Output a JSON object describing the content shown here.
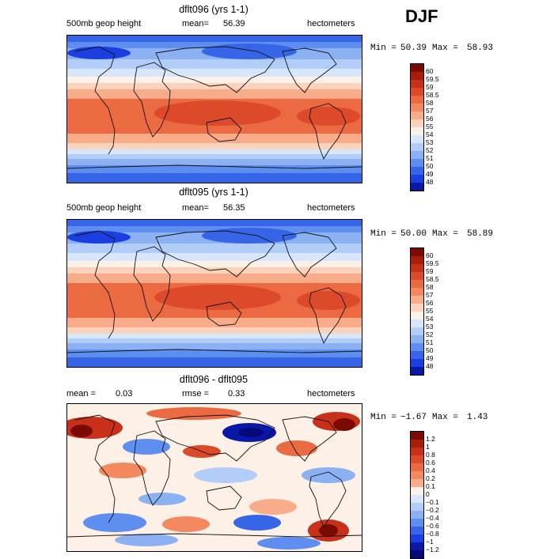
{
  "season": "DJF",
  "panels": [
    {
      "title": "dflt096 (yrs 1-1)",
      "left_label": "500mb geop height",
      "mean_label": "mean=",
      "mean_value": "56.39",
      "units": "hectometers",
      "min_label": "Min =",
      "min_value": "50.39",
      "max_label": "Max =",
      "max_value": "58.93",
      "colorbar_labels": [
        "60",
        "59.5",
        "59",
        "58.5",
        "58",
        "57",
        "56",
        "55",
        "54",
        "53",
        "52",
        "51",
        "50",
        "49",
        "48"
      ],
      "colors": [
        "#7a0a02",
        "#a81c0a",
        "#c8301a",
        "#dc4a2a",
        "#ec6a42",
        "#f4885e",
        "#f8ac8a",
        "#fbd2bc",
        "#fdf0e6",
        "#d7e6fb",
        "#b2cdf7",
        "#8cb1f2",
        "#5e8ef0",
        "#3665e8",
        "#1a3ee0",
        "#0a18a8"
      ],
      "colormap_variant": "full"
    },
    {
      "title": "dflt095 (yrs 1-1)",
      "left_label": "500mb geop height",
      "mean_label": "mean=",
      "mean_value": "56.35",
      "units": "hectometers",
      "min_label": "Min =",
      "min_value": "50.00",
      "max_label": "Max =",
      "max_value": "58.89",
      "colorbar_labels": [
        "60",
        "59.5",
        "59",
        "58.5",
        "58",
        "57",
        "56",
        "55",
        "54",
        "53",
        "52",
        "51",
        "50",
        "49",
        "48"
      ],
      "colors": [
        "#7a0a02",
        "#a81c0a",
        "#c8301a",
        "#dc4a2a",
        "#ec6a42",
        "#f4885e",
        "#f8ac8a",
        "#fbd2bc",
        "#fdf0e6",
        "#d7e6fb",
        "#b2cdf7",
        "#8cb1f2",
        "#5e8ef0",
        "#3665e8",
        "#1a3ee0",
        "#0a18a8"
      ],
      "colormap_variant": "full"
    },
    {
      "title": "dflt096 - dflt095",
      "mean_label": "mean =",
      "mean_value": "0.03",
      "rmse_label": "rmse =",
      "rmse_value": "0.33",
      "units": "hectometers",
      "min_label": "Min =",
      "min_value": "−1.67",
      "max_label": "Max =",
      "max_value": "1.43",
      "colorbar_labels": [
        "1.2",
        "1",
        "0.8",
        "0.6",
        "0.4",
        "0.2",
        "0.1",
        "0",
        "−0.1",
        "−0.2",
        "−0.4",
        "−0.6",
        "−0.8",
        "−1",
        "−1.2"
      ],
      "colors": [
        "#7a0a02",
        "#a81c0a",
        "#c8301a",
        "#dc4a2a",
        "#ec6a42",
        "#f4885e",
        "#f8ac8a",
        "#fdf0e6",
        "#d7e6fb",
        "#b2cdf7",
        "#8cb1f2",
        "#5e8ef0",
        "#3665e8",
        "#1a3ee0",
        "#0a18a8",
        "#060a78"
      ],
      "colormap_variant": "diff"
    }
  ]
}
